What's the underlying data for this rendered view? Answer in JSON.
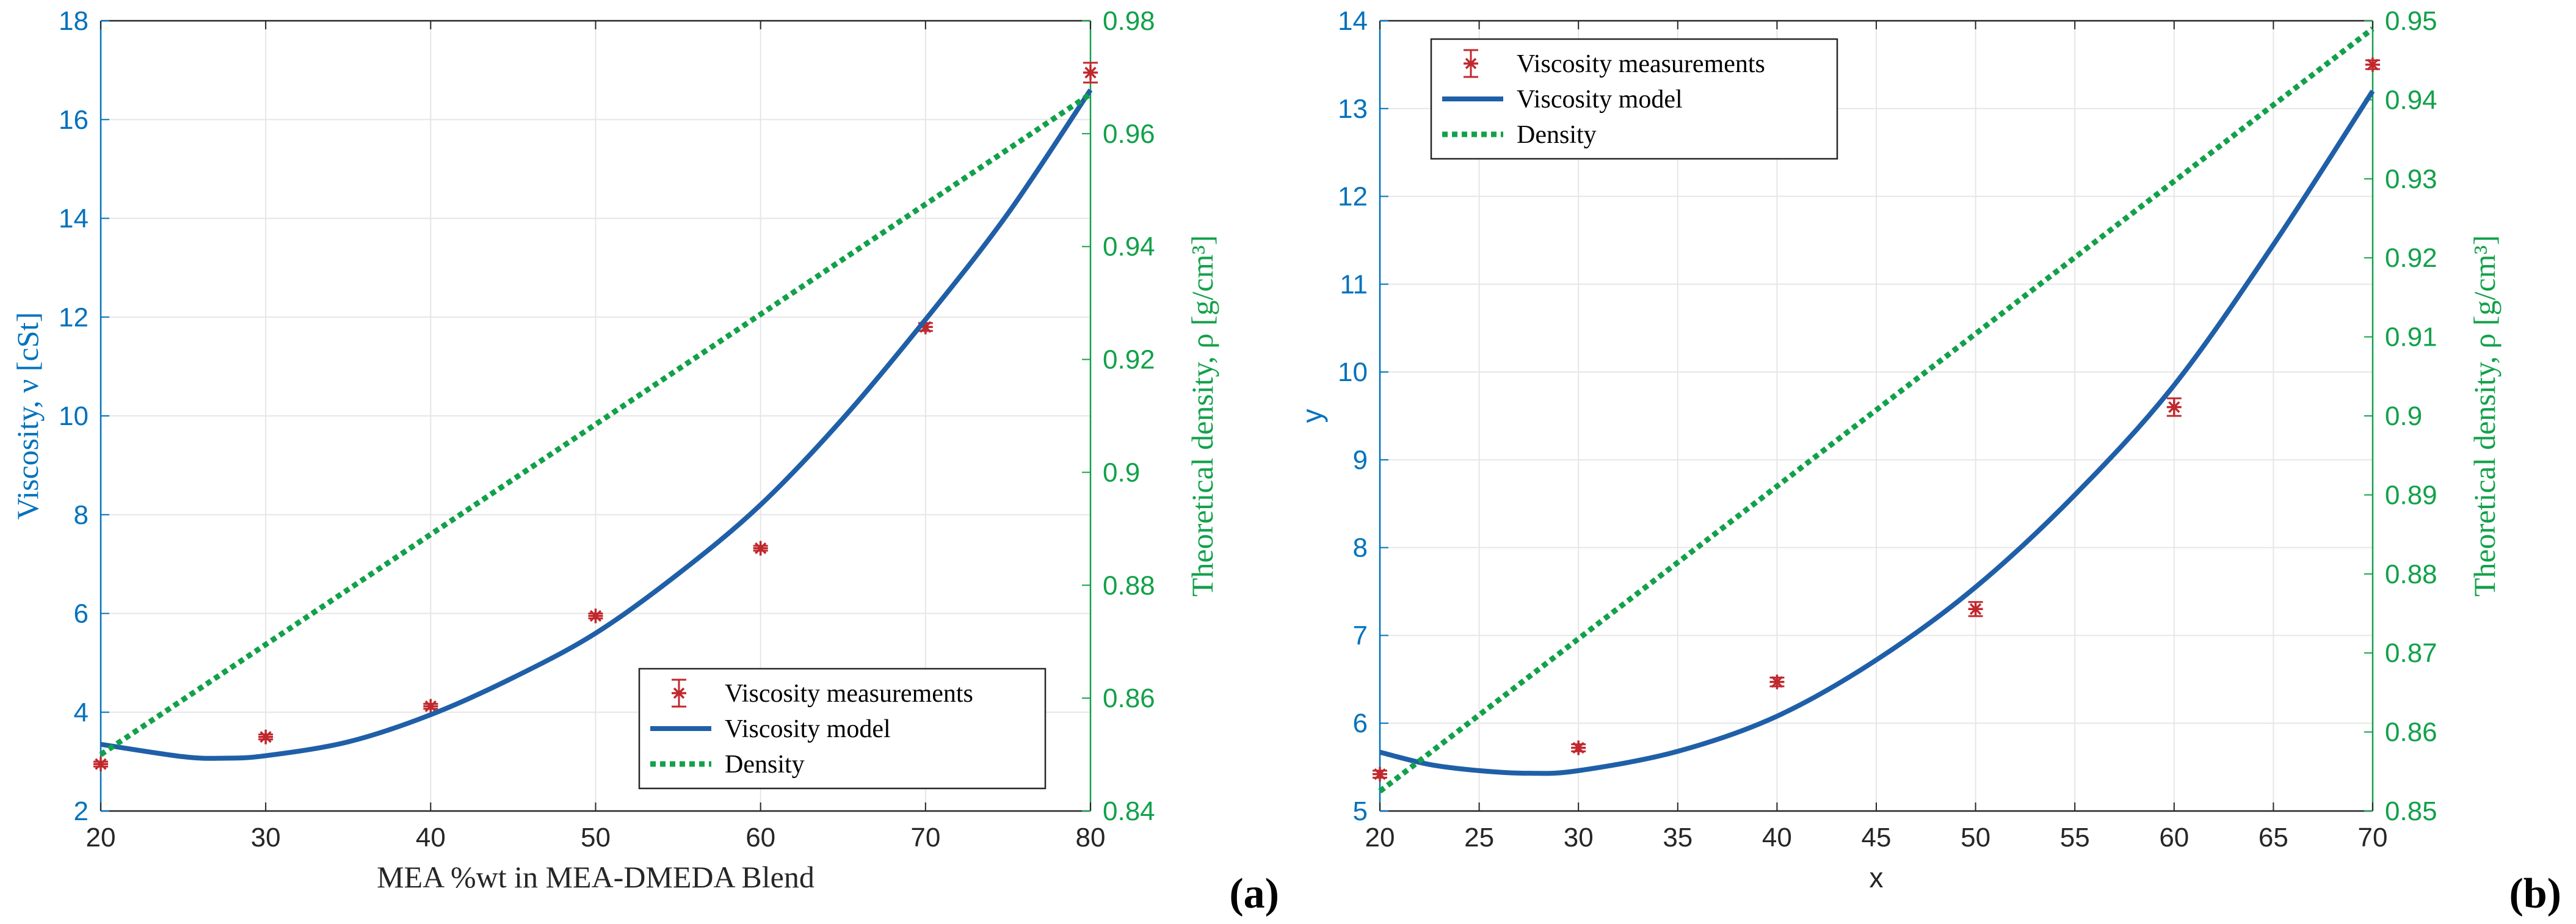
{
  "chart_data": [
    {
      "panel_label": "(a)",
      "type": "line",
      "xlabel": "MEA %wt in MEA-DMEDA Blend",
      "ylabel_left": "Viscosity, ν  [cSt]",
      "ylabel_right": "Theoretical density, ρ [g/cm³]",
      "xlim": [
        20,
        80
      ],
      "ylim_left": [
        2,
        18
      ],
      "ylim_right": [
        0.84,
        0.98
      ],
      "xticks": [
        20,
        30,
        40,
        50,
        60,
        70,
        80
      ],
      "yticks_left": [
        2,
        4,
        6,
        8,
        10,
        12,
        14,
        16,
        18
      ],
      "yticks_right": [
        "0.84",
        "0.86",
        "0.88",
        "0.9",
        "0.92",
        "0.94",
        "0.96",
        "0.98"
      ],
      "grid": true,
      "legend": {
        "position": "bottom-right",
        "entries": [
          "Viscosity measurements",
          "Viscosity model",
          "Density"
        ]
      },
      "series": [
        {
          "name": "Viscosity measurements",
          "kind": "errorbar",
          "axis": "left",
          "color": "#C0282D",
          "x": [
            20,
            30,
            40,
            50,
            60,
            70,
            80
          ],
          "y": [
            2.95,
            3.5,
            4.12,
            5.95,
            7.32,
            11.8,
            16.95
          ],
          "err": [
            0.05,
            0.05,
            0.05,
            0.05,
            0.05,
            0.08,
            0.2
          ]
        },
        {
          "name": "Viscosity model",
          "kind": "line",
          "axis": "left",
          "color": "#1F5FA8",
          "x": [
            20,
            25,
            27.5,
            30,
            35,
            40,
            45,
            50,
            55,
            60,
            65,
            70,
            75,
            80
          ],
          "y": [
            3.35,
            3.1,
            3.07,
            3.12,
            3.4,
            3.95,
            4.7,
            5.6,
            6.8,
            8.2,
            9.95,
            11.95,
            14.1,
            16.6
          ]
        },
        {
          "name": "Density",
          "kind": "line",
          "axis": "right",
          "color": "#12A14A",
          "dashed": true,
          "x": [
            20,
            80
          ],
          "y": [
            0.85,
            0.967
          ]
        }
      ]
    },
    {
      "panel_label": "(b)",
      "type": "line",
      "xlabel": "x",
      "ylabel_left": "y",
      "ylabel_right": "Theoretical density, ρ [g/cm³]",
      "xlim": [
        20,
        70
      ],
      "ylim_left": [
        5,
        14
      ],
      "ylim_right": [
        0.85,
        0.95
      ],
      "xticks": [
        20,
        25,
        30,
        35,
        40,
        45,
        50,
        55,
        60,
        65,
        70
      ],
      "yticks_left": [
        5,
        6,
        7,
        8,
        9,
        10,
        11,
        12,
        13,
        14
      ],
      "yticks_right": [
        "0.85",
        "0.86",
        "0.87",
        "0.88",
        "0.89",
        "0.9",
        "0.91",
        "0.92",
        "0.93",
        "0.94",
        "0.95"
      ],
      "grid": true,
      "legend": {
        "position": "top-left",
        "entries": [
          "Viscosity measurements",
          "Viscosity model",
          "Density"
        ]
      },
      "series": [
        {
          "name": "Viscosity measurements",
          "kind": "errorbar",
          "axis": "left",
          "color": "#C0282D",
          "x": [
            20,
            30,
            40,
            50,
            60,
            70
          ],
          "y": [
            5.42,
            5.72,
            6.47,
            7.3,
            9.6,
            13.5
          ],
          "err": [
            0.04,
            0.04,
            0.05,
            0.08,
            0.1,
            0.05
          ]
        },
        {
          "name": "Viscosity model",
          "kind": "line",
          "axis": "left",
          "color": "#1F5FA8",
          "x": [
            20,
            22.5,
            25,
            27.5,
            30,
            35,
            40,
            45,
            50,
            55,
            60,
            65,
            70
          ],
          "y": [
            5.67,
            5.53,
            5.46,
            5.43,
            5.46,
            5.68,
            6.08,
            6.72,
            7.55,
            8.6,
            9.85,
            11.45,
            13.2
          ]
        },
        {
          "name": "Density",
          "kind": "line",
          "axis": "right",
          "color": "#12A14A",
          "dashed": true,
          "x": [
            20,
            70
          ],
          "y": [
            0.8525,
            0.949
          ]
        }
      ]
    }
  ]
}
